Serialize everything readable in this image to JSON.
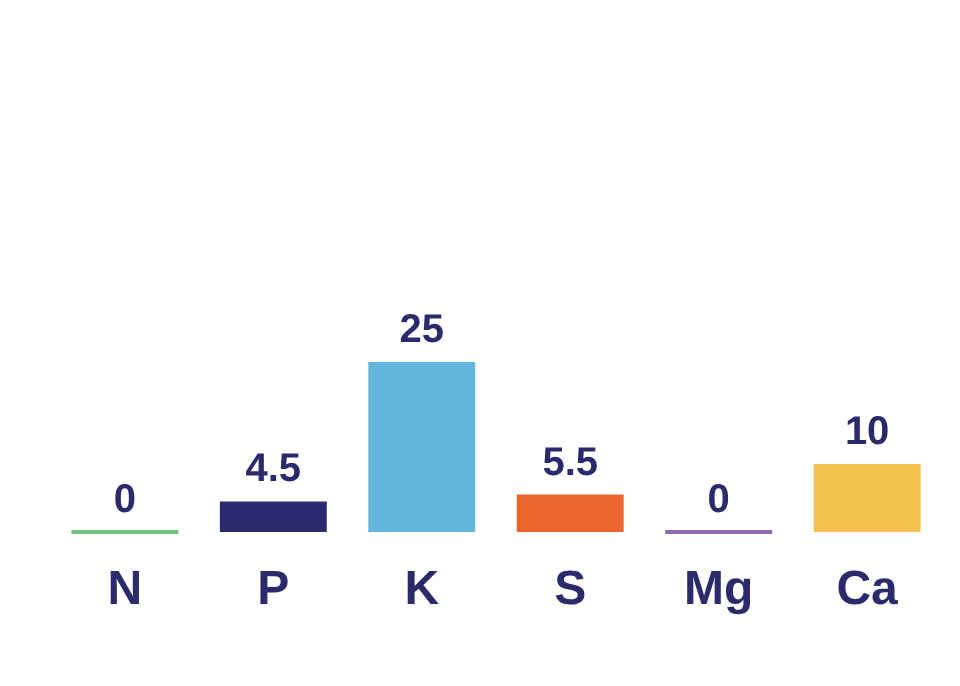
{
  "chart_data": {
    "type": "bar",
    "categories": [
      "N",
      "P",
      "K",
      "S",
      "Mg",
      "Ca"
    ],
    "values": [
      0,
      4.5,
      25,
      5.5,
      0,
      10
    ],
    "colors": [
      "#6cc27f",
      "#2a2a6e",
      "#62b6dd",
      "#ec6630",
      "#8e6bb0",
      "#f4c150"
    ],
    "data_labels": true
  }
}
